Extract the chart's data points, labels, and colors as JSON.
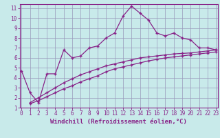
{
  "bg_color": "#c8eaea",
  "grid_color": "#9999bb",
  "line_color": "#882288",
  "spine_color": "#882288",
  "xlim": [
    -0.2,
    23.2
  ],
  "ylim": [
    1,
    11.4
  ],
  "xlabel": "Windchill (Refroidissement éolien,°C)",
  "xlabel_fontsize": 6.5,
  "xticks": [
    0,
    1,
    2,
    3,
    4,
    5,
    6,
    7,
    8,
    9,
    10,
    11,
    12,
    13,
    14,
    15,
    16,
    17,
    18,
    19,
    20,
    21,
    22,
    23
  ],
  "yticks": [
    1,
    2,
    3,
    4,
    5,
    6,
    7,
    8,
    9,
    10,
    11
  ],
  "tick_fontsize": 5.5,
  "series1_x": [
    0,
    1,
    2,
    3,
    4,
    5,
    6,
    7,
    8,
    9,
    10,
    11,
    12,
    13,
    14,
    15,
    16,
    17,
    18,
    19,
    20,
    21,
    22,
    23
  ],
  "series1_y": [
    4.7,
    2.5,
    1.5,
    4.4,
    4.4,
    6.8,
    6.0,
    6.2,
    7.0,
    7.2,
    8.0,
    8.5,
    10.2,
    11.2,
    10.5,
    9.8,
    8.5,
    8.2,
    8.5,
    8.0,
    7.8,
    7.0,
    7.0,
    6.8
  ],
  "series2_x": [
    1,
    2,
    3,
    4,
    5,
    6,
    7,
    8,
    9,
    10,
    11,
    12,
    13,
    14,
    15,
    16,
    17,
    18,
    19,
    20,
    21,
    22,
    23
  ],
  "series2_y": [
    1.5,
    2.0,
    2.5,
    3.0,
    3.5,
    3.9,
    4.3,
    4.6,
    4.9,
    5.2,
    5.4,
    5.6,
    5.8,
    6.0,
    6.1,
    6.2,
    6.3,
    6.4,
    6.45,
    6.5,
    6.6,
    6.7,
    6.8
  ],
  "series3_x": [
    1,
    2,
    3,
    4,
    5,
    6,
    7,
    8,
    9,
    10,
    11,
    12,
    13,
    14,
    15,
    16,
    17,
    18,
    19,
    20,
    21,
    22,
    23
  ],
  "series3_y": [
    1.4,
    1.7,
    2.1,
    2.5,
    2.9,
    3.2,
    3.6,
    3.9,
    4.2,
    4.6,
    4.9,
    5.1,
    5.3,
    5.5,
    5.7,
    5.85,
    6.0,
    6.1,
    6.2,
    6.3,
    6.4,
    6.5,
    6.6
  ]
}
